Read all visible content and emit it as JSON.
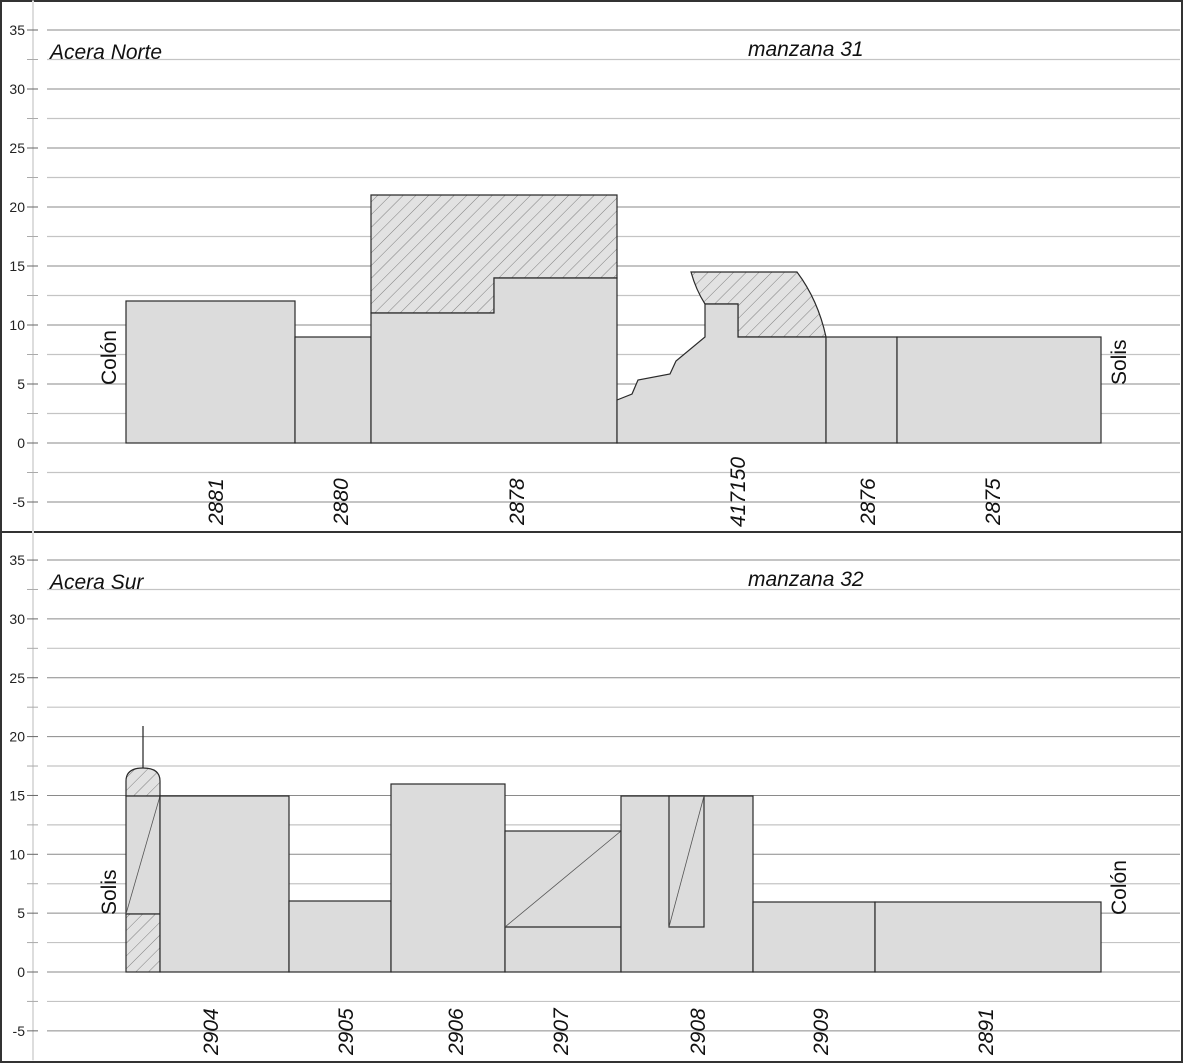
{
  "y_ticks": [
    "35",
    "30",
    "25",
    "20",
    "15",
    "10",
    "5",
    "0",
    "-5"
  ],
  "panels": [
    {
      "title": "Acera Norte",
      "block": "manzana 31",
      "left_street": "Colón",
      "right_street": "Solis",
      "lots": [
        {
          "label": "2881",
          "height": 12
        },
        {
          "label": "2880",
          "height": 9
        },
        {
          "label": "2878",
          "height": 21
        },
        {
          "label": "417150",
          "height": 14.5
        },
        {
          "label": "2876",
          "height": 9
        },
        {
          "label": "2875",
          "height": 9
        }
      ]
    },
    {
      "title": "Acera Sur",
      "block": "manzana 32",
      "left_street": "Solis",
      "right_street": "Colón",
      "lots": [
        {
          "label": "2904",
          "height": 15
        },
        {
          "label": "2905",
          "height": 6
        },
        {
          "label": "2906",
          "height": 16
        },
        {
          "label": "2907",
          "height": 12
        },
        {
          "label": "2908",
          "height": 15
        },
        {
          "label": "2909",
          "height": 6
        },
        {
          "label": "2891",
          "height": 6
        }
      ]
    }
  ]
}
